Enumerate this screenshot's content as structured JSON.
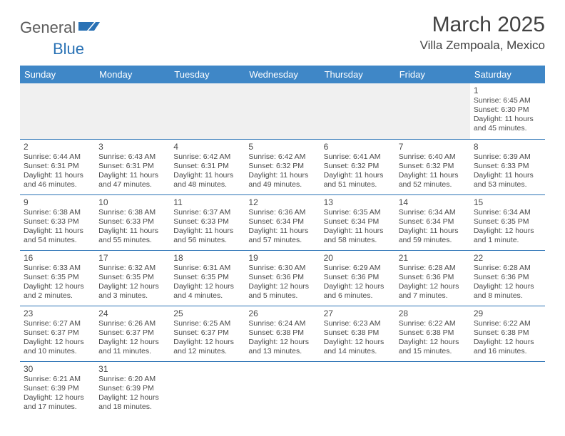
{
  "brand": {
    "part1": "General",
    "part2": "Blue"
  },
  "title": "March 2025",
  "location": "Villa Zempoala, Mexico",
  "header_bg": "#3f87c7",
  "border_color": "#2a72b5",
  "days_of_week": [
    "Sunday",
    "Monday",
    "Tuesday",
    "Wednesday",
    "Thursday",
    "Friday",
    "Saturday"
  ],
  "weeks": [
    [
      null,
      null,
      null,
      null,
      null,
      null,
      {
        "n": "1",
        "sr": "6:45 AM",
        "ss": "6:30 PM",
        "dl": "11 hours and 45 minutes."
      }
    ],
    [
      {
        "n": "2",
        "sr": "6:44 AM",
        "ss": "6:31 PM",
        "dl": "11 hours and 46 minutes."
      },
      {
        "n": "3",
        "sr": "6:43 AM",
        "ss": "6:31 PM",
        "dl": "11 hours and 47 minutes."
      },
      {
        "n": "4",
        "sr": "6:42 AM",
        "ss": "6:31 PM",
        "dl": "11 hours and 48 minutes."
      },
      {
        "n": "5",
        "sr": "6:42 AM",
        "ss": "6:32 PM",
        "dl": "11 hours and 49 minutes."
      },
      {
        "n": "6",
        "sr": "6:41 AM",
        "ss": "6:32 PM",
        "dl": "11 hours and 51 minutes."
      },
      {
        "n": "7",
        "sr": "6:40 AM",
        "ss": "6:32 PM",
        "dl": "11 hours and 52 minutes."
      },
      {
        "n": "8",
        "sr": "6:39 AM",
        "ss": "6:33 PM",
        "dl": "11 hours and 53 minutes."
      }
    ],
    [
      {
        "n": "9",
        "sr": "6:38 AM",
        "ss": "6:33 PM",
        "dl": "11 hours and 54 minutes."
      },
      {
        "n": "10",
        "sr": "6:38 AM",
        "ss": "6:33 PM",
        "dl": "11 hours and 55 minutes."
      },
      {
        "n": "11",
        "sr": "6:37 AM",
        "ss": "6:33 PM",
        "dl": "11 hours and 56 minutes."
      },
      {
        "n": "12",
        "sr": "6:36 AM",
        "ss": "6:34 PM",
        "dl": "11 hours and 57 minutes."
      },
      {
        "n": "13",
        "sr": "6:35 AM",
        "ss": "6:34 PM",
        "dl": "11 hours and 58 minutes."
      },
      {
        "n": "14",
        "sr": "6:34 AM",
        "ss": "6:34 PM",
        "dl": "11 hours and 59 minutes."
      },
      {
        "n": "15",
        "sr": "6:34 AM",
        "ss": "6:35 PM",
        "dl": "12 hours and 1 minute."
      }
    ],
    [
      {
        "n": "16",
        "sr": "6:33 AM",
        "ss": "6:35 PM",
        "dl": "12 hours and 2 minutes."
      },
      {
        "n": "17",
        "sr": "6:32 AM",
        "ss": "6:35 PM",
        "dl": "12 hours and 3 minutes."
      },
      {
        "n": "18",
        "sr": "6:31 AM",
        "ss": "6:35 PM",
        "dl": "12 hours and 4 minutes."
      },
      {
        "n": "19",
        "sr": "6:30 AM",
        "ss": "6:36 PM",
        "dl": "12 hours and 5 minutes."
      },
      {
        "n": "20",
        "sr": "6:29 AM",
        "ss": "6:36 PM",
        "dl": "12 hours and 6 minutes."
      },
      {
        "n": "21",
        "sr": "6:28 AM",
        "ss": "6:36 PM",
        "dl": "12 hours and 7 minutes."
      },
      {
        "n": "22",
        "sr": "6:28 AM",
        "ss": "6:36 PM",
        "dl": "12 hours and 8 minutes."
      }
    ],
    [
      {
        "n": "23",
        "sr": "6:27 AM",
        "ss": "6:37 PM",
        "dl": "12 hours and 10 minutes."
      },
      {
        "n": "24",
        "sr": "6:26 AM",
        "ss": "6:37 PM",
        "dl": "12 hours and 11 minutes."
      },
      {
        "n": "25",
        "sr": "6:25 AM",
        "ss": "6:37 PM",
        "dl": "12 hours and 12 minutes."
      },
      {
        "n": "26",
        "sr": "6:24 AM",
        "ss": "6:38 PM",
        "dl": "12 hours and 13 minutes."
      },
      {
        "n": "27",
        "sr": "6:23 AM",
        "ss": "6:38 PM",
        "dl": "12 hours and 14 minutes."
      },
      {
        "n": "28",
        "sr": "6:22 AM",
        "ss": "6:38 PM",
        "dl": "12 hours and 15 minutes."
      },
      {
        "n": "29",
        "sr": "6:22 AM",
        "ss": "6:38 PM",
        "dl": "12 hours and 16 minutes."
      }
    ],
    [
      {
        "n": "30",
        "sr": "6:21 AM",
        "ss": "6:39 PM",
        "dl": "12 hours and 17 minutes."
      },
      {
        "n": "31",
        "sr": "6:20 AM",
        "ss": "6:39 PM",
        "dl": "12 hours and 18 minutes."
      },
      null,
      null,
      null,
      null,
      null
    ]
  ],
  "labels": {
    "sunrise": "Sunrise:",
    "sunset": "Sunset:",
    "daylight": "Daylight:"
  }
}
